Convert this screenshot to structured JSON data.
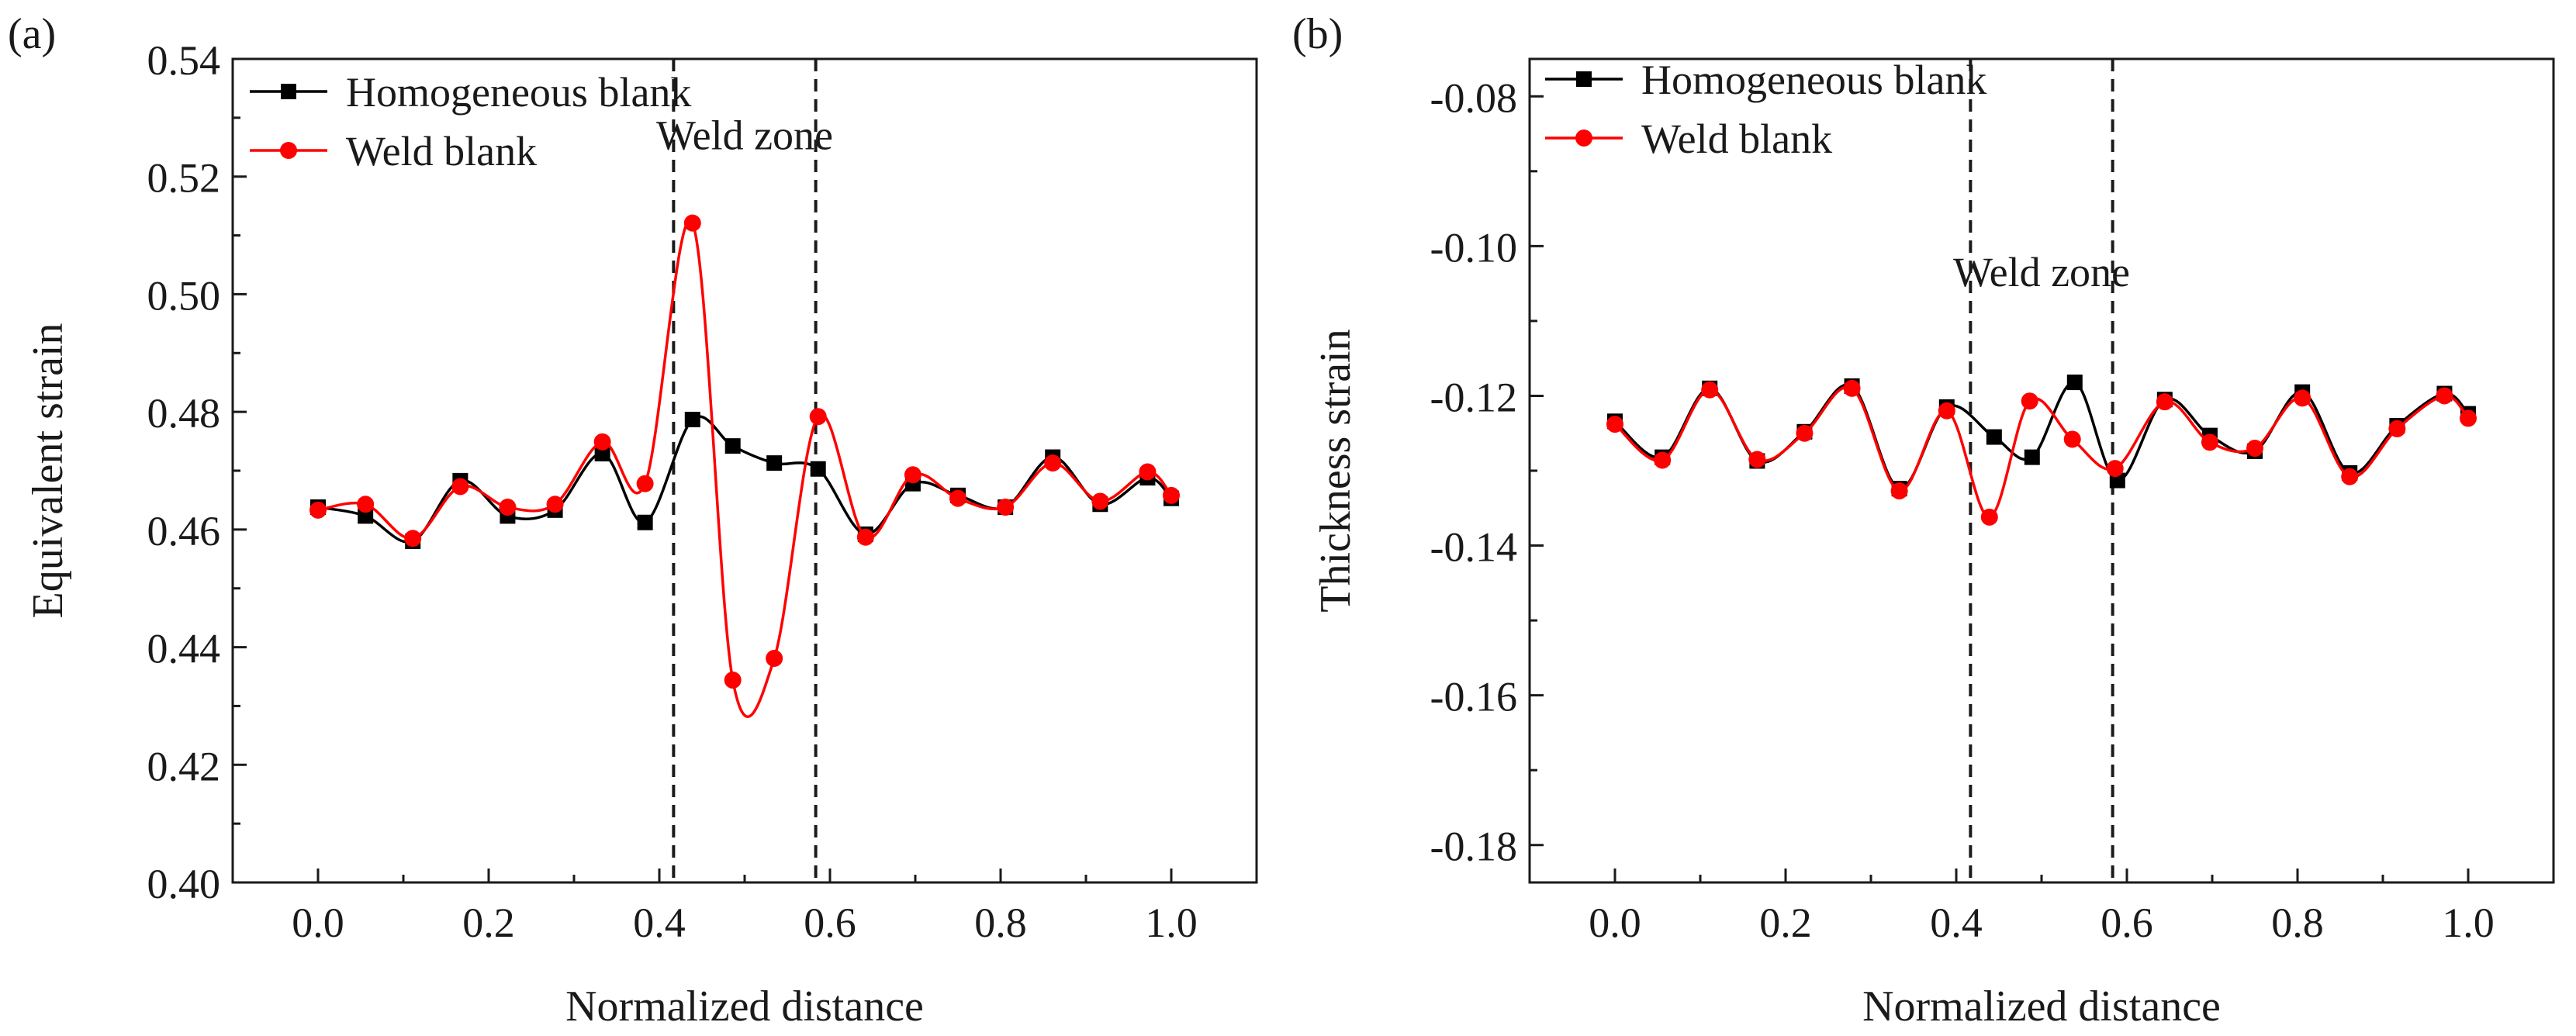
{
  "figure": {
    "panels": [
      {
        "panel_label": "(a)"
      },
      {
        "panel_label": "(b)"
      }
    ]
  },
  "chart_data": [
    {
      "type": "line",
      "panel_label": "(a)",
      "xlabel": "Normalized distance",
      "ylabel": "Equivalent strain",
      "xlim": [
        -0.1,
        1.1
      ],
      "ylim": [
        0.4,
        0.54
      ],
      "xticks": [
        0.0,
        0.2,
        0.4,
        0.6,
        0.8,
        1.0
      ],
      "xtick_labels": [
        "0.0",
        "0.2",
        "0.4",
        "0.6",
        "0.8",
        "1.0"
      ],
      "yticks": [
        0.4,
        0.42,
        0.44,
        0.46,
        0.48,
        0.5,
        0.52,
        0.54
      ],
      "ytick_labels": [
        "0.40",
        "0.42",
        "0.44",
        "0.46",
        "0.48",
        "0.50",
        "0.52",
        "0.54"
      ],
      "x": [
        0.0,
        0.0556,
        0.1111,
        0.1667,
        0.2222,
        0.2778,
        0.3333,
        0.3889,
        0.4444,
        0.5,
        0.5556,
        0.6111,
        0.6667,
        0.7222,
        0.7778,
        0.8333,
        0.8889,
        0.9444,
        1.0
      ],
      "series": [
        {
          "name": "Homogeneous blank",
          "color": "#000000",
          "marker": "square",
          "x": [
            0.0,
            0.0556,
            0.1111,
            0.1667,
            0.2222,
            0.2778,
            0.3333,
            0.3833,
            0.4389,
            0.4861,
            0.5347,
            0.5861,
            0.6417,
            0.6972,
            0.75,
            0.8056,
            0.8611,
            0.9167,
            0.9722,
            1.0
          ],
          "values": [
            0.4638,
            0.4623,
            0.458,
            0.4683,
            0.4623,
            0.4633,
            0.4729,
            0.4612,
            0.4787,
            0.4742,
            0.4713,
            0.4703,
            0.4592,
            0.4678,
            0.4658,
            0.4638,
            0.4723,
            0.4643,
            0.4688,
            0.4653
          ]
        },
        {
          "name": "Weld blank",
          "color": "#ff0000",
          "marker": "circle",
          "x": [
            0.0,
            0.0556,
            0.1111,
            0.1667,
            0.2222,
            0.2778,
            0.3333,
            0.3833,
            0.4389,
            0.4861,
            0.5347,
            0.5861,
            0.6417,
            0.6972,
            0.75,
            0.8056,
            0.8611,
            0.9167,
            0.9722,
            1.0
          ],
          "values": [
            0.4633,
            0.4643,
            0.4585,
            0.4673,
            0.4638,
            0.4643,
            0.4749,
            0.4678,
            0.5121,
            0.4344,
            0.4381,
            0.4792,
            0.4587,
            0.4693,
            0.4653,
            0.4638,
            0.4713,
            0.4648,
            0.4698,
            0.4658
          ]
        }
      ],
      "legend": {
        "position": "top-left",
        "entries": [
          "Homogeneous blank",
          "Weld blank"
        ]
      },
      "vlines": [
        0.4167,
        0.5833
      ],
      "annotation": {
        "text": "Weld zone",
        "x": 0.5,
        "y": 0.527
      }
    },
    {
      "type": "line",
      "panel_label": "(b)",
      "xlabel": "Normalized distance",
      "ylabel": "Thickness strain",
      "xlim": [
        -0.1,
        1.1
      ],
      "ylim": [
        -0.185,
        -0.075
      ],
      "xticks": [
        0.0,
        0.2,
        0.4,
        0.6,
        0.8,
        1.0
      ],
      "xtick_labels": [
        "0.0",
        "0.2",
        "0.4",
        "0.6",
        "0.8",
        "1.0"
      ],
      "yticks": [
        -0.18,
        -0.16,
        -0.14,
        -0.12,
        -0.1,
        -0.08
      ],
      "ytick_labels": [
        "-0.18",
        "-0.16",
        "-0.14",
        "-0.12",
        "-0.10",
        "-0.08"
      ],
      "series": [
        {
          "name": "Homogeneous blank",
          "color": "#000000",
          "marker": "square",
          "x": [
            0.0,
            0.0556,
            0.1111,
            0.1667,
            0.2222,
            0.2778,
            0.3333,
            0.3889,
            0.4444,
            0.4889,
            0.5389,
            0.5889,
            0.6444,
            0.6972,
            0.75,
            0.8056,
            0.8611,
            0.9167,
            0.9722,
            1.0
          ],
          "values": [
            -0.1234,
            -0.1282,
            -0.119,
            -0.1287,
            -0.1248,
            -0.1187,
            -0.1324,
            -0.1215,
            -0.1255,
            -0.1282,
            -0.1182,
            -0.1313,
            -0.1205,
            -0.1253,
            -0.1274,
            -0.1195,
            -0.1303,
            -0.124,
            -0.1197,
            -0.1224
          ]
        },
        {
          "name": "Weld blank",
          "color": "#ff0000",
          "marker": "circle",
          "x": [
            0.0,
            0.0556,
            0.1111,
            0.1667,
            0.2222,
            0.2778,
            0.3333,
            0.3889,
            0.4389,
            0.4861,
            0.5361,
            0.5861,
            0.6444,
            0.6972,
            0.75,
            0.8056,
            0.8611,
            0.9167,
            0.9722,
            1.0
          ],
          "values": [
            -0.1238,
            -0.1286,
            -0.1192,
            -0.1285,
            -0.125,
            -0.119,
            -0.1327,
            -0.122,
            -0.1362,
            -0.1207,
            -0.1258,
            -0.1297,
            -0.1208,
            -0.1262,
            -0.127,
            -0.1203,
            -0.1308,
            -0.1244,
            -0.12,
            -0.123
          ]
        }
      ],
      "legend": {
        "position": "top-left",
        "entries": [
          "Homogeneous blank",
          "Weld blank"
        ]
      },
      "vlines": [
        0.4167,
        0.5833
      ],
      "annotation": {
        "text": "Weld zone",
        "x": 0.5,
        "y": -0.1035
      }
    }
  ]
}
